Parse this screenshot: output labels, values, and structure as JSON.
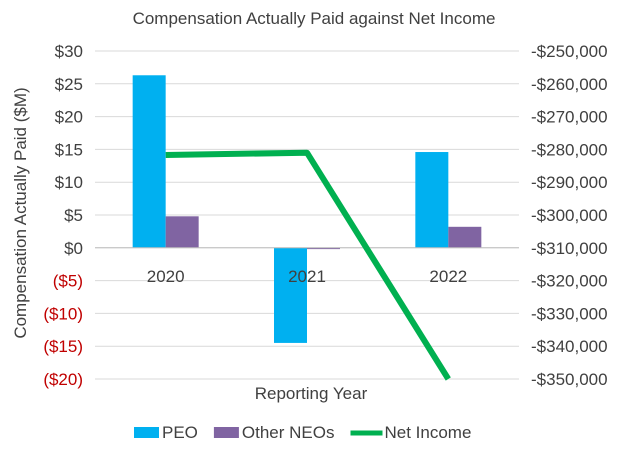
{
  "chart_data": {
    "type": "bar",
    "title": "Compensation Actually Paid against Net Income",
    "xlabel": "Reporting Year",
    "ylabel": "Compensation Actually Paid ($M)",
    "categories": [
      "2020",
      "2021",
      "2022"
    ],
    "y_left": {
      "range": [
        -20,
        30
      ],
      "ticks": [
        30,
        25,
        20,
        15,
        10,
        5,
        0,
        -5,
        -10,
        -15,
        -20
      ],
      "tick_labels": [
        "$30",
        "$25",
        "$20",
        "$15",
        "$10",
        "$5",
        "$0",
        "($5)",
        "($10)",
        "($15)",
        "($20)"
      ]
    },
    "y_right": {
      "range": [
        -350000,
        -250000
      ],
      "ticks": [
        -250000,
        -260000,
        -270000,
        -280000,
        -290000,
        -300000,
        -310000,
        -320000,
        -330000,
        -340000,
        -350000
      ],
      "tick_labels": [
        "-$250,000",
        "-$260,000",
        "-$270,000",
        "-$280,000",
        "-$290,000",
        "-$300,000",
        "-$310,000",
        "-$320,000",
        "-$330,000",
        "-$340,000",
        "-$350,000"
      ]
    },
    "series": [
      {
        "name": "PEO",
        "type": "bar",
        "axis": "left",
        "color": "#00b0f0",
        "values": [
          26.3,
          -14.5,
          14.6
        ]
      },
      {
        "name": "Other NEOs",
        "type": "bar",
        "axis": "left",
        "color": "#8064a2",
        "values": [
          4.8,
          -0.2,
          3.2
        ]
      },
      {
        "name": "Net Income",
        "type": "line",
        "axis": "right",
        "color": "#00b050",
        "values": [
          -281700,
          -281000,
          -350000
        ]
      }
    ],
    "negative_label_color": "#c00000",
    "gridlines": true,
    "legend_position": "bottom"
  }
}
